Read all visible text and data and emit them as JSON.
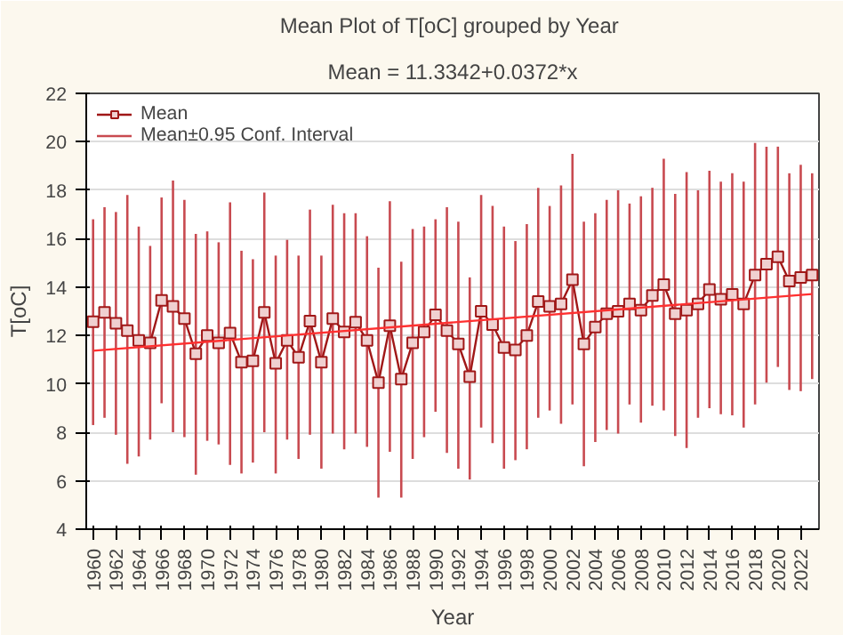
{
  "chart_data": {
    "type": "line",
    "title": "Mean Plot of T[oC] grouped by  Year",
    "subtitle": "Mean = 11.3342+0.0372*x",
    "xlabel": "Year",
    "ylabel": "T[oC]",
    "x": [
      1960,
      1961,
      1962,
      1963,
      1964,
      1965,
      1966,
      1967,
      1968,
      1969,
      1970,
      1971,
      1972,
      1973,
      1974,
      1975,
      1976,
      1977,
      1978,
      1979,
      1980,
      1981,
      1982,
      1983,
      1984,
      1985,
      1986,
      1987,
      1988,
      1989,
      1990,
      1991,
      1992,
      1993,
      1994,
      1995,
      1996,
      1997,
      1998,
      1999,
      2000,
      2001,
      2002,
      2003,
      2004,
      2005,
      2006,
      2007,
      2008,
      2009,
      2010,
      2011,
      2012,
      2013,
      2014,
      2015,
      2016,
      2017,
      2018,
      2019,
      2020,
      2021,
      2022,
      2023
    ],
    "series": [
      {
        "name": "Mean",
        "color": "#a01818",
        "marker": "square",
        "values": [
          12.57,
          12.95,
          12.5,
          12.2,
          11.8,
          11.7,
          13.45,
          13.2,
          12.7,
          11.25,
          12.0,
          11.7,
          12.1,
          10.9,
          10.95,
          12.95,
          10.85,
          11.8,
          11.1,
          12.6,
          10.9,
          12.7,
          12.15,
          12.55,
          11.8,
          10.05,
          12.4,
          10.2,
          11.7,
          12.15,
          12.85,
          12.2,
          11.65,
          10.3,
          13.0,
          12.45,
          11.5,
          11.4,
          12.0,
          13.4,
          13.2,
          13.3,
          14.3,
          11.65,
          12.35,
          12.9,
          13.0,
          13.3,
          13.05,
          13.65,
          14.1,
          12.9,
          13.05,
          13.3,
          13.9,
          13.5,
          13.7,
          13.3,
          14.5,
          14.95,
          15.25,
          14.25,
          14.4,
          14.5
        ],
        "errors": [
          [
            8.3,
            16.8
          ],
          [
            8.6,
            17.3
          ],
          [
            7.9,
            17.1
          ],
          [
            6.7,
            17.8
          ],
          [
            7.0,
            16.5
          ],
          [
            7.7,
            15.7
          ],
          [
            9.2,
            17.7
          ],
          [
            8.0,
            18.4
          ],
          [
            7.8,
            17.6
          ],
          [
            6.25,
            16.2
          ],
          [
            7.65,
            16.3
          ],
          [
            7.5,
            15.85
          ],
          [
            6.65,
            17.5
          ],
          [
            6.3,
            15.5
          ],
          [
            6.75,
            15.15
          ],
          [
            8.0,
            17.9
          ],
          [
            6.3,
            15.3
          ],
          [
            7.7,
            15.95
          ],
          [
            6.9,
            15.3
          ],
          [
            7.9,
            17.2
          ],
          [
            6.5,
            15.3
          ],
          [
            7.95,
            17.4
          ],
          [
            7.3,
            17.05
          ],
          [
            7.95,
            17.05
          ],
          [
            7.4,
            16.1
          ],
          [
            5.3,
            14.8
          ],
          [
            7.2,
            17.55
          ],
          [
            5.3,
            15.05
          ],
          [
            6.9,
            16.4
          ],
          [
            7.8,
            16.5
          ],
          [
            8.85,
            16.8
          ],
          [
            7.15,
            17.3
          ],
          [
            6.5,
            16.7
          ],
          [
            6.05,
            14.4
          ],
          [
            8.2,
            17.8
          ],
          [
            7.55,
            17.35
          ],
          [
            6.5,
            16.5
          ],
          [
            6.85,
            15.9
          ],
          [
            7.3,
            16.6
          ],
          [
            8.6,
            18.1
          ],
          [
            8.9,
            17.35
          ],
          [
            8.35,
            18.2
          ],
          [
            9.15,
            19.5
          ],
          [
            6.6,
            16.7
          ],
          [
            7.6,
            17.05
          ],
          [
            8.1,
            17.6
          ],
          [
            7.95,
            18.0
          ],
          [
            9.15,
            17.45
          ],
          [
            8.4,
            17.75
          ],
          [
            9.1,
            18.1
          ],
          [
            8.9,
            19.3
          ],
          [
            7.85,
            17.85
          ],
          [
            7.35,
            18.75
          ],
          [
            8.6,
            18.0
          ],
          [
            9.0,
            18.8
          ],
          [
            8.75,
            18.35
          ],
          [
            8.7,
            18.7
          ],
          [
            8.2,
            18.35
          ],
          [
            9.15,
            19.95
          ],
          [
            10.05,
            19.8
          ],
          [
            10.7,
            19.8
          ],
          [
            9.75,
            18.7
          ],
          [
            9.7,
            19.05
          ],
          [
            10.2,
            18.7
          ]
        ]
      },
      {
        "type": "line",
        "color": "#ff3030",
        "x": [
          1960,
          2023
        ],
        "values": [
          11.37,
          13.71
        ]
      }
    ],
    "annotations": [
      "Mean±0.95 Conf. Interval"
    ],
    "xlim": [
      1959.4,
      2023.6
    ],
    "xticks": [
      1960,
      1962,
      1964,
      1966,
      1968,
      1970,
      1972,
      1974,
      1976,
      1978,
      1980,
      1982,
      1984,
      1986,
      1988,
      1990,
      1992,
      1994,
      1996,
      1998,
      2000,
      2002,
      2004,
      2006,
      2008,
      2010,
      2012,
      2014,
      2016,
      2018,
      2020,
      2022
    ],
    "ylim": [
      4,
      22
    ],
    "yticks": [
      4,
      6,
      8,
      10,
      12,
      14,
      16,
      18,
      20,
      22
    ],
    "grid": "y",
    "legend": "top left"
  }
}
